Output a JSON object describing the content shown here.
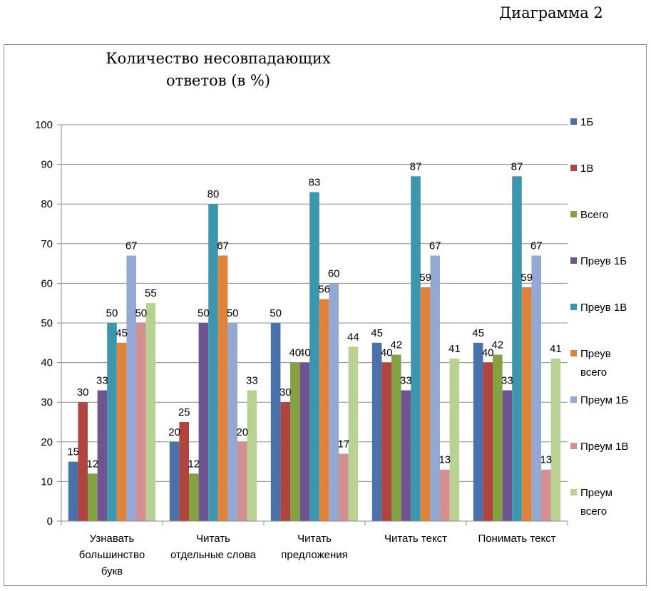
{
  "page": {
    "caption": "Диаграмма 2"
  },
  "chart_data": {
    "type": "bar",
    "title": [
      "Количество несовпадающих",
      "ответов  (в %)"
    ],
    "categories": [
      [
        "Узнавать",
        "большинство",
        "букв"
      ],
      [
        "Читать",
        "отдельные слова"
      ],
      [
        "Читать",
        "предложения"
      ],
      [
        "Читать текст"
      ],
      [
        "Понимать текст"
      ]
    ],
    "ylim": [
      0,
      100
    ],
    "yticks": [
      0,
      10,
      20,
      30,
      40,
      50,
      60,
      70,
      80,
      90,
      100
    ],
    "grid": true,
    "legend_position": "right",
    "series": [
      {
        "name": "1Б",
        "legend": [
          "1Б"
        ],
        "color": "#4a72a8",
        "values": [
          15,
          20,
          50,
          45,
          45
        ]
      },
      {
        "name": "1В",
        "legend": [
          "1В"
        ],
        "color": "#b0443f",
        "values": [
          30,
          25,
          30,
          40,
          40
        ]
      },
      {
        "name": "Всего",
        "legend": [
          "Всего"
        ],
        "color": "#86a044",
        "values": [
          12,
          12,
          40,
          42,
          42
        ]
      },
      {
        "name": "Преув 1Б",
        "legend": [
          "Преув 1Б"
        ],
        "color": "#6e5490",
        "values": [
          33,
          50,
          40,
          33,
          33
        ]
      },
      {
        "name": "Преув 1В",
        "legend": [
          "Преув 1В"
        ],
        "color": "#3d96ad",
        "values": [
          50,
          80,
          83,
          87,
          87
        ]
      },
      {
        "name": "Преув всего",
        "legend": [
          "Преув",
          "всего"
        ],
        "color": "#e0833a",
        "values": [
          45,
          67,
          56,
          59,
          59
        ]
      },
      {
        "name": "Преум 1Б",
        "legend": [
          "Преум 1Б"
        ],
        "color": "#93a9d3",
        "values": [
          67,
          50,
          60,
          67,
          67
        ]
      },
      {
        "name": "Преум 1В",
        "legend": [
          "Преум 1В"
        ],
        "color": "#d49090",
        "values": [
          50,
          20,
          17,
          13,
          13
        ]
      },
      {
        "name": "Преум всего",
        "legend": [
          "Преум",
          "всего"
        ],
        "color": "#b9d193",
        "values": [
          55,
          33,
          44,
          41,
          41
        ]
      }
    ]
  }
}
